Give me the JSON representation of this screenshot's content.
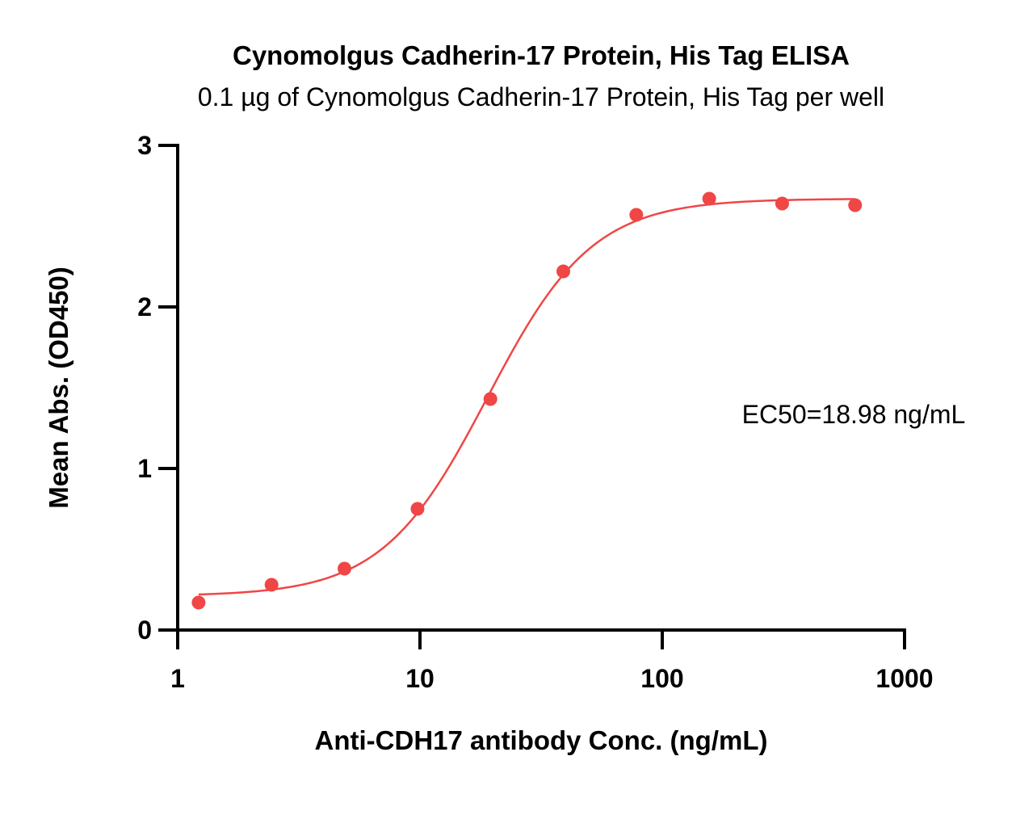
{
  "chart_data": {
    "type": "scatter",
    "title": "Cynomolgus Cadherin-17 Protein, His Tag ELISA",
    "subtitle": "0.1 µg of Cynomolgus Cadherin-17 Protein, His Tag per well",
    "xlabel": "Anti-CDH17 antibody Conc. (ng/mL)",
    "ylabel": "Mean Abs. (OD450)",
    "xscale": "log",
    "xlim": [
      1,
      1000
    ],
    "ylim": [
      0,
      3
    ],
    "xticks": [
      "1",
      "10",
      "100",
      "1000"
    ],
    "yticks": [
      "0",
      "1",
      "2",
      "3"
    ],
    "annotation": "EC50=18.98 ng/mL",
    "colors": {
      "series": "#f04646"
    },
    "grid": false,
    "series": [
      {
        "x": [
          1.22,
          2.44,
          4.88,
          9.77,
          19.53,
          39.06,
          78.13,
          156.25,
          312.5,
          625
        ],
        "y": [
          0.17,
          0.28,
          0.38,
          0.75,
          1.43,
          2.22,
          2.57,
          2.67,
          2.64,
          2.63
        ]
      }
    ],
    "fit_curve": {
      "model": "4PL",
      "bottom": 0.21,
      "top": 2.67,
      "ec50": 18.98,
      "hill": 2.0
    }
  }
}
